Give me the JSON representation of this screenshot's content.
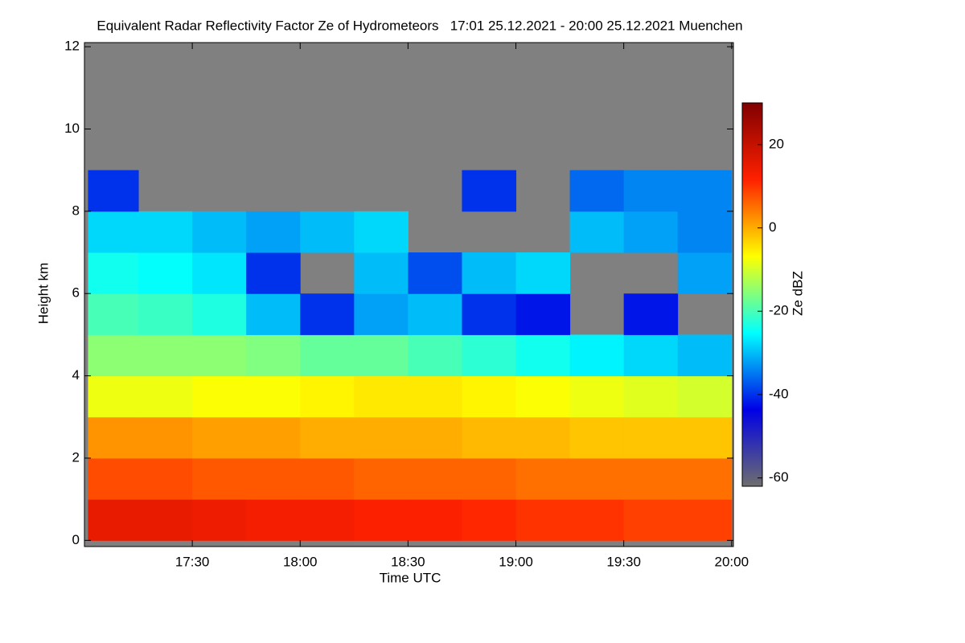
{
  "chart_data": {
    "type": "heatmap",
    "title": "Equivalent Radar Reflectivity Factor Ze of Hydrometeors   17:01 25.12.2021 - 20:00 25.12.2021 Muenchen",
    "x_label": "Time UTC",
    "y_label": "Height km",
    "colorbar_label": "Ze dBZ",
    "x": [
      1021,
      1035,
      1050,
      1065,
      1080,
      1095,
      1110,
      1125,
      1140,
      1155,
      1170,
      1185,
      1200
    ],
    "y": [
      0,
      1,
      2,
      3,
      4,
      5,
      6,
      7,
      8,
      9,
      10,
      11,
      12
    ],
    "z": [
      [
        15,
        15,
        14,
        13,
        13,
        12,
        12,
        11,
        10,
        10,
        9,
        9
      ],
      [
        8,
        8,
        7,
        7,
        7,
        6,
        6,
        6,
        5,
        5,
        5,
        5
      ],
      [
        2,
        2,
        1,
        1,
        0,
        0,
        0,
        -1,
        -1,
        -2,
        -2,
        -2
      ],
      [
        -8,
        -8,
        -7,
        -7,
        -6,
        -5,
        -5,
        -6,
        -7,
        -8,
        -9,
        -10
      ],
      [
        -15,
        -15,
        -15,
        -16,
        -18,
        -18,
        -20,
        -22,
        -24,
        -26,
        -28,
        -30
      ],
      [
        -20,
        -21,
        -23,
        -30,
        -40,
        -32,
        -30,
        -40,
        -42,
        null,
        -42,
        null
      ],
      [
        -24,
        -25,
        -27,
        -40,
        null,
        -30,
        -38,
        -30,
        -28,
        null,
        null,
        -32
      ],
      [
        -28,
        -28,
        -30,
        -32,
        -30,
        -28,
        null,
        null,
        null,
        -30,
        -32,
        -34
      ],
      [
        -40,
        null,
        null,
        null,
        null,
        null,
        null,
        -40,
        null,
        -36,
        -34,
        -34
      ],
      [
        null,
        null,
        null,
        null,
        null,
        null,
        null,
        null,
        null,
        null,
        null,
        null
      ],
      [
        null,
        null,
        null,
        null,
        null,
        null,
        null,
        null,
        null,
        null,
        null,
        null
      ],
      [
        null,
        null,
        null,
        null,
        null,
        null,
        null,
        null,
        null,
        null,
        null,
        null
      ]
    ],
    "xlim": [
      1020,
      1200.5
    ],
    "ylim": [
      -0.15,
      12.1
    ],
    "zlim": [
      -62,
      30
    ],
    "xticks": [
      {
        "value": 1050,
        "label": "17:30"
      },
      {
        "value": 1080,
        "label": "18:00"
      },
      {
        "value": 1110,
        "label": "18:30"
      },
      {
        "value": 1140,
        "label": "19:00"
      },
      {
        "value": 1170,
        "label": "19:30"
      },
      {
        "value": 1200,
        "label": "20:00"
      }
    ],
    "yticks": [
      0,
      2,
      4,
      6,
      8,
      10,
      12
    ],
    "zticks": [
      -60,
      -40,
      -20,
      0,
      20
    ],
    "colormap": [
      "#6e6e6e",
      "#0000e6",
      "#00ffff",
      "#ffff00",
      "#ff2000",
      "#800000"
    ],
    "background_color": "#808080"
  }
}
